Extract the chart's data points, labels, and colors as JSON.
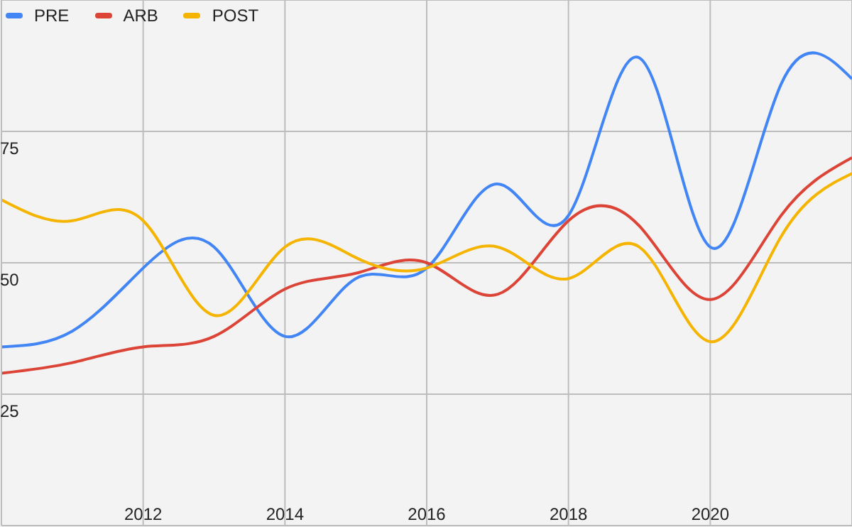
{
  "chart_data": {
    "type": "line",
    "x": [
      2010,
      2011,
      2012,
      2013,
      2014,
      2015,
      2016,
      2017,
      2018,
      2019,
      2020,
      2021,
      2022
    ],
    "series": [
      {
        "name": "PRE",
        "color": "#4285f4",
        "values": [
          34,
          37,
          49,
          53,
          36,
          47,
          49,
          65,
          59,
          89,
          53,
          84,
          85
        ]
      },
      {
        "name": "ARB",
        "color": "#db4437",
        "values": [
          29,
          31,
          34,
          36,
          45,
          48,
          50,
          44,
          58,
          57,
          43,
          59,
          70
        ]
      },
      {
        "name": "POST",
        "color": "#f4b400",
        "values": [
          62,
          58,
          58,
          40,
          53,
          51,
          49,
          53,
          47,
          53,
          35,
          55,
          67
        ]
      }
    ],
    "xlim": [
      2010,
      2022
    ],
    "xticks": [
      2012,
      2014,
      2016,
      2018,
      2020
    ],
    "ylim": [
      0,
      100
    ],
    "yticks": [
      25,
      50,
      75
    ],
    "grid": true,
    "legend": "top left",
    "marker": "none",
    "line_style": "solid"
  }
}
